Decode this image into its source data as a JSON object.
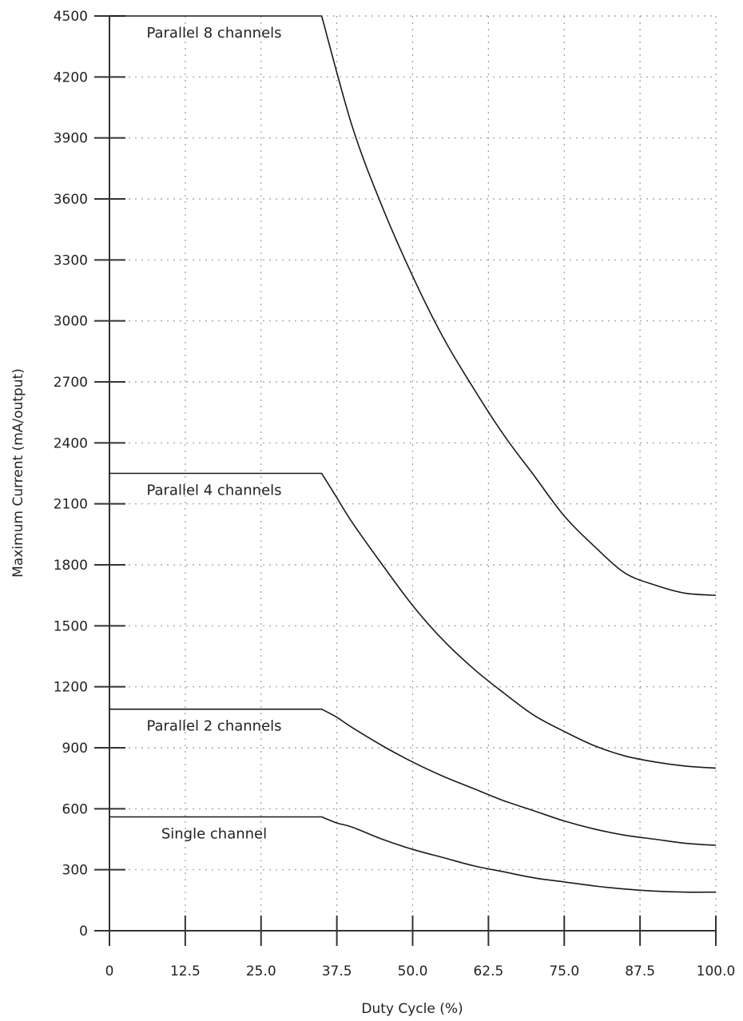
{
  "chart_data": {
    "type": "line",
    "title": "",
    "xlabel": "Duty Cycle (%)",
    "ylabel": "Maximum Current (mA/output)",
    "xlim": [
      0,
      100
    ],
    "ylim": [
      0,
      4500
    ],
    "x_ticks": [
      "0",
      "12.5",
      "25.0",
      "37.5",
      "50.0",
      "62.5",
      "75.0",
      "87.5",
      "100.0"
    ],
    "y_ticks": [
      "0",
      "300",
      "600",
      "900",
      "1200",
      "1500",
      "1800",
      "2100",
      "2400",
      "2700",
      "3000",
      "3300",
      "3600",
      "3900",
      "4200",
      "4500"
    ],
    "grid": true,
    "line_color": "#1a1a1a",
    "series": [
      {
        "name": "Parallel 8 channels",
        "x": [
          0,
          35,
          40,
          45,
          50,
          55,
          60,
          65,
          70,
          75,
          80,
          85,
          90,
          95,
          100
        ],
        "y": [
          4500,
          4500,
          3960,
          3560,
          3220,
          2920,
          2670,
          2440,
          2240,
          2040,
          1890,
          1760,
          1700,
          1660,
          1650
        ]
      },
      {
        "name": "Parallel 4 channels",
        "x": [
          0,
          35,
          37.5,
          40,
          45,
          50,
          55,
          60,
          65,
          70,
          75,
          80,
          85,
          90,
          95,
          100
        ],
        "y": [
          2250,
          2250,
          2130,
          2010,
          1800,
          1600,
          1430,
          1290,
          1170,
          1060,
          980,
          910,
          860,
          830,
          810,
          800
        ]
      },
      {
        "name": "Parallel 2 channels",
        "x": [
          0,
          35,
          37.5,
          40,
          45,
          50,
          55,
          60,
          65,
          70,
          75,
          80,
          85,
          90,
          95,
          100
        ],
        "y": [
          1090,
          1090,
          1050,
          1000,
          910,
          830,
          760,
          700,
          640,
          590,
          540,
          500,
          470,
          450,
          430,
          420
        ]
      },
      {
        "name": "Single channel",
        "x": [
          0,
          35,
          37.5,
          40,
          45,
          50,
          55,
          60,
          65,
          70,
          75,
          80,
          85,
          90,
          95,
          100
        ],
        "y": [
          560,
          560,
          530,
          510,
          450,
          400,
          360,
          320,
          290,
          260,
          240,
          220,
          205,
          195,
          190,
          190
        ]
      }
    ]
  }
}
